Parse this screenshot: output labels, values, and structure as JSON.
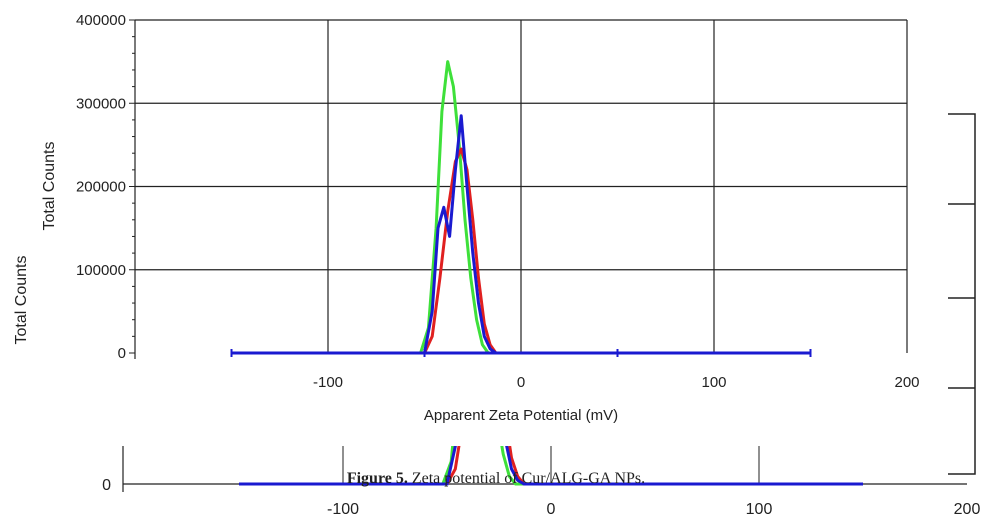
{
  "chart_data": [
    {
      "type": "line",
      "title": "",
      "xlabel": "Apparent Zeta Potential (mV)",
      "ylabel": "Total Counts",
      "xlim": [
        -200,
        200
      ],
      "ylim": [
        0,
        400000
      ],
      "xticks": [
        "-100",
        "0",
        "100",
        "200"
      ],
      "yticks": [
        "0",
        "100000",
        "200000",
        "300000",
        "400000"
      ],
      "grid": true,
      "series": [
        {
          "color": "#3ee03a",
          "x": [
            -150,
            -52,
            -48,
            -44,
            -41,
            -38,
            -35,
            -32,
            -29,
            -26,
            -23,
            -20,
            -17,
            150
          ],
          "y": [
            0,
            0,
            30000,
            150000,
            290000,
            350000,
            320000,
            250000,
            160000,
            90000,
            40000,
            10000,
            0,
            0
          ]
        },
        {
          "color": "#e02020",
          "x": [
            -150,
            -50,
            -46,
            -42,
            -38,
            -34,
            -31,
            -28,
            -25,
            -22,
            -19,
            -16,
            -13,
            150
          ],
          "y": [
            0,
            0,
            20000,
            90000,
            170000,
            230000,
            245000,
            220000,
            160000,
            90000,
            35000,
            10000,
            0,
            0
          ]
        },
        {
          "color": "#1a1ad0",
          "x": [
            -150,
            -50,
            -46,
            -43,
            -40,
            -37,
            -34,
            -31,
            -28,
            -25,
            -22,
            -19,
            -16,
            -13,
            150
          ],
          "y": [
            0,
            0,
            50000,
            150000,
            175000,
            140000,
            220000,
            285000,
            200000,
            120000,
            60000,
            20000,
            5000,
            0,
            0
          ]
        }
      ]
    },
    {
      "type": "line",
      "ylabel": "Total Counts",
      "xlim": [
        -200,
        200
      ],
      "xticks": [
        "-100",
        "0",
        "100",
        "200"
      ],
      "yticks": [
        "0"
      ],
      "grid": false
    }
  ],
  "caption": {
    "label": "Figure 5.",
    "text": " Zeta potential of Cur/ALG-GA NPs."
  }
}
